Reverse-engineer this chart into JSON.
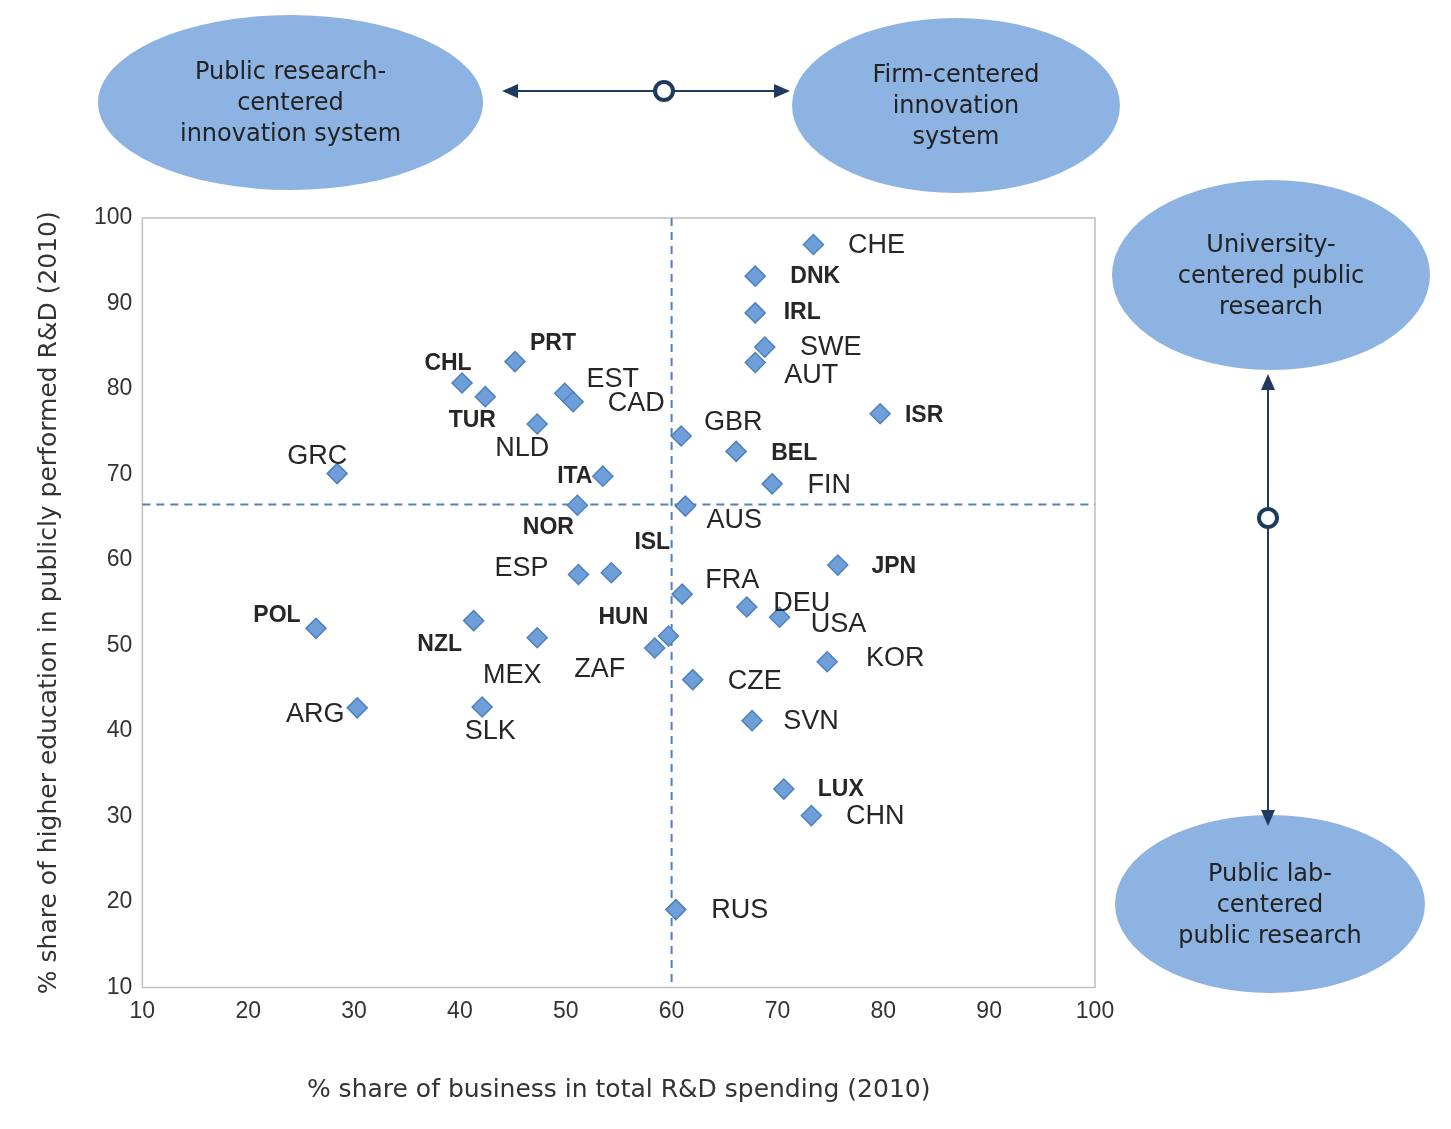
{
  "chart_data": {
    "type": "scatter",
    "xlabel": "% share of business in total R&D spending (2010)",
    "ylabel": "% share of higher education in publicly performed R&D (2010)",
    "xlim": [
      10,
      100
    ],
    "xticks": [
      10,
      20,
      30,
      40,
      50,
      60,
      70,
      80,
      90,
      100
    ],
    "ylim": [
      10,
      100
    ],
    "yticks": [
      10,
      20,
      30,
      40,
      50,
      60,
      70,
      80,
      90,
      100
    ],
    "grid": false,
    "legend": false,
    "marker": "diamond",
    "series": [
      {
        "color": "#6f9fd8",
        "x": [
          73.4,
          68.8,
          67.9,
          60.9,
          69.5,
          61.3,
          49.9,
          50.7,
          47.3,
          28.4,
          51.2,
          61.0,
          67.1,
          70.2,
          74.7,
          62.0,
          67.6,
          73.2,
          60.4,
          47.3,
          58.4,
          30.3,
          42.1
        ],
        "values": [
          96.9,
          84.9,
          83.1,
          74.5,
          68.9,
          66.3,
          79.5,
          78.5,
          75.9,
          70.1,
          58.3,
          56.0,
          54.5,
          53.3,
          48.1,
          46.0,
          41.2,
          30.1,
          19.1,
          50.9,
          49.7,
          42.7,
          42.8
        ],
        "value_labels": [
          "CHE",
          "SWE",
          "AUT",
          "GBR",
          "FIN",
          "AUS",
          "EST",
          "CAD",
          "NLD",
          "GRC",
          "ESP",
          "FRA",
          "DEU",
          "USA",
          "KOR",
          "CZE",
          "SVN",
          "CHN",
          "RUS",
          "MEX",
          "ZAF",
          "ARG",
          "SLK"
        ]
      },
      {
        "color": "#6f9fd8",
        "x": [
          67.9,
          67.9,
          79.7,
          66.1,
          40.2,
          45.2,
          42.4,
          53.5,
          51.1,
          54.3,
          26.4,
          41.3,
          59.7,
          75.7,
          70.6
        ],
        "values": [
          93.2,
          88.9,
          77.1,
          72.7,
          80.7,
          83.2,
          79.1,
          69.8,
          66.4,
          58.5,
          52.0,
          52.9,
          51.1,
          59.4,
          33.2
        ],
        "value_labels": [
          "DNK",
          "IRL",
          "ISR",
          "BEL",
          "CHL",
          "PRT",
          "TUR",
          "ITA",
          "NOR",
          "ISL",
          "POL",
          "NZL",
          "HUN",
          "JPN",
          "LUX"
        ]
      }
    ],
    "ref_lines": [
      {
        "axis": "x",
        "value": 60,
        "line_style": "dashed",
        "color": "#4f81bd"
      },
      {
        "axis": "y",
        "value": 66.5,
        "line_style": "dashed",
        "color": "#4f81bd"
      }
    ],
    "annotations": [
      "Public research-centered innovation system",
      "Firm-centered innovation system",
      "University-centered public research",
      "Public lab-centered public research"
    ]
  }
}
